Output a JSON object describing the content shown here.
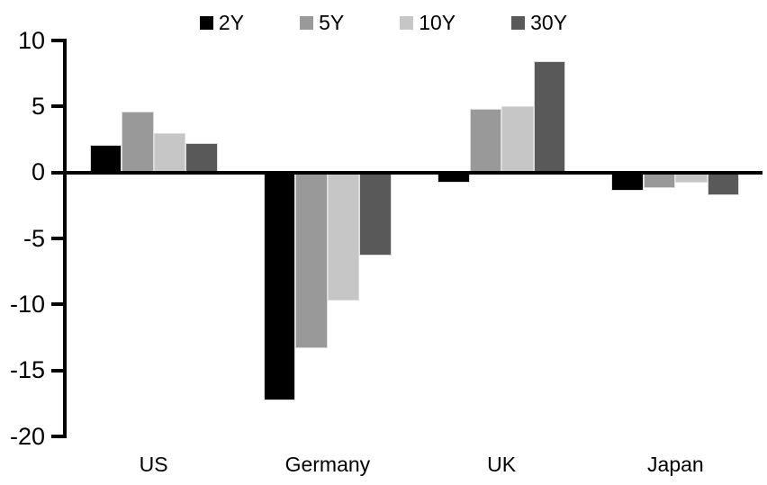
{
  "chart_data": {
    "type": "bar",
    "title": "",
    "categories": [
      "US",
      "Germany",
      "UK",
      "Japan"
    ],
    "series": [
      {
        "name": "2Y",
        "color": "#000000",
        "values": [
          2.1,
          -17.3,
          -0.8,
          -1.4
        ]
      },
      {
        "name": "5Y",
        "color": "#999999",
        "values": [
          4.6,
          -13.3,
          4.8,
          -1.2
        ]
      },
      {
        "name": "10Y",
        "color": "#c6c6c6",
        "values": [
          3.0,
          -9.7,
          5.0,
          -0.8
        ]
      },
      {
        "name": "30Y",
        "color": "#595959",
        "values": [
          2.2,
          -6.3,
          8.4,
          -1.7
        ]
      }
    ],
    "y_axis": {
      "min": -20,
      "max": 10,
      "step": 5,
      "tick_labels": [
        "10",
        "5",
        "0",
        "-5",
        "-10",
        "-15",
        "-20"
      ]
    },
    "xlabel": "",
    "ylabel": "",
    "legend_position": "top-center",
    "grid": false,
    "axis_color": "#000000",
    "background_color": "#ffffff"
  }
}
